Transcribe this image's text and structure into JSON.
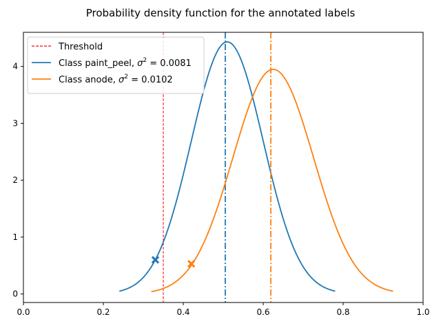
{
  "chart_data": {
    "type": "line",
    "title": "Probability density function for the annotated labels",
    "xlabel": "",
    "ylabel": "",
    "xlim": [
      0.0,
      1.0
    ],
    "ylim": [
      -0.15,
      4.6
    ],
    "xticks": [
      "0.0",
      "0.2",
      "0.4",
      "0.6",
      "0.8",
      "1.0"
    ],
    "xtick_values": [
      0.0,
      0.2,
      0.4,
      0.6,
      0.8,
      1.0
    ],
    "yticks": [
      "0",
      "1",
      "2",
      "3",
      "4"
    ],
    "ytick_values": [
      0,
      1,
      2,
      3,
      4
    ],
    "grid": false,
    "legend_position": "top-left",
    "threshold": {
      "label": "Threshold",
      "x": 0.35,
      "color": "#ff0000",
      "style": "dashed"
    },
    "series": [
      {
        "label_prefix": "Class paint_peel, ",
        "label_sigma": "σ",
        "label_sup": "2",
        "label_suffix": " = 0.0081",
        "color": "#1f77b4",
        "mean": 0.51,
        "variance": 0.0081,
        "x_min": 0.24,
        "x_max": 0.78,
        "mean_line_x": 0.505,
        "marker": {
          "x": 0.33,
          "y": 0.6
        }
      },
      {
        "label_prefix": "Class anode, ",
        "label_sigma": "σ",
        "label_sup": "2",
        "label_suffix": " = 0.0102",
        "color": "#ff7f0e",
        "mean": 0.625,
        "variance": 0.0102,
        "x_min": 0.32,
        "x_max": 0.925,
        "mean_line_x": 0.619,
        "marker": {
          "x": 0.42,
          "y": 0.53
        }
      }
    ]
  }
}
